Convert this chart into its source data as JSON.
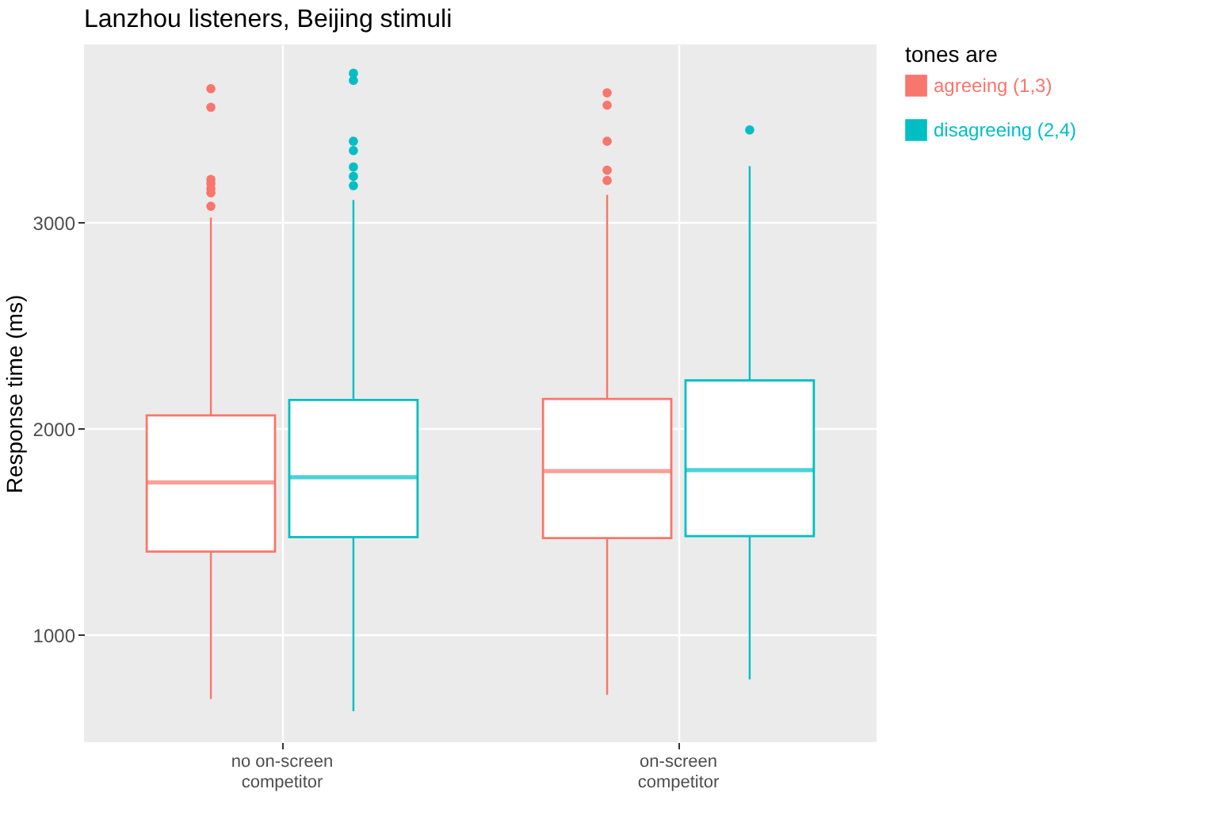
{
  "chart_data": {
    "type": "box",
    "title": "Lanzhou listeners, Beijing stimuli",
    "ylabel": "Response time (ms)",
    "legend_title": "tones are",
    "categories": [
      "no on-screen competitor",
      "on-screen competitor"
    ],
    "series": [
      {
        "name": "agreeing (1,3)",
        "color": "#f8766d",
        "boxes": [
          {
            "low": 690,
            "q1": 1405,
            "median": 1740,
            "q3": 2065,
            "high": 3025,
            "outliers": [
              3650,
              3560,
              3210,
              3190,
              3165,
              3145,
              3080
            ]
          },
          {
            "low": 710,
            "q1": 1470,
            "median": 1795,
            "q3": 2145,
            "high": 3135,
            "outliers": [
              3630,
              3570,
              3395,
              3255,
              3205
            ]
          }
        ]
      },
      {
        "name": "disagreeing (2,4)",
        "color": "#00bfc4",
        "boxes": [
          {
            "low": 630,
            "q1": 1475,
            "median": 1765,
            "q3": 2140,
            "high": 3110,
            "outliers": [
              3725,
              3690,
              3395,
              3350,
              3270,
              3225,
              3180
            ]
          },
          {
            "low": 785,
            "q1": 1480,
            "median": 1800,
            "q3": 2235,
            "high": 3275,
            "outliers": [
              3450
            ]
          }
        ]
      }
    ],
    "ylim": [
      480,
      3865
    ],
    "yticks": [
      1000,
      2000,
      3000
    ],
    "grid": true,
    "legend": "right"
  }
}
